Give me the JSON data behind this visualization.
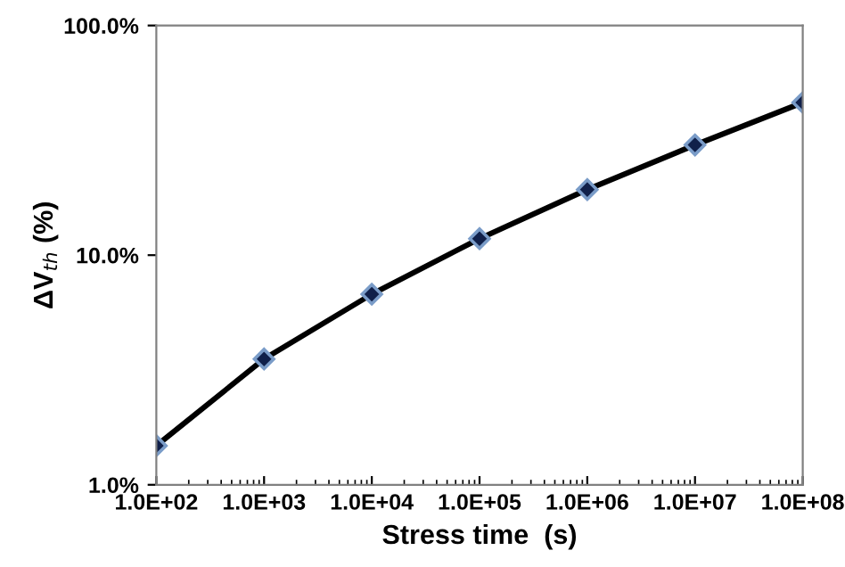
{
  "chart_data": {
    "type": "line",
    "xlabel": "Stress time  (s)",
    "ylabel": "ΔV$_{th}$ (%)",
    "log": "xy",
    "marker": "diamond",
    "line_style": "solid",
    "grid": false,
    "legend": false,
    "x": [
      100,
      1000,
      10000,
      100000,
      1000000,
      10000000,
      100000000
    ],
    "series": [
      {
        "color": "#000000",
        "values": [
          1.48,
          3.53,
          6.76,
          11.8,
          19.3,
          30.2,
          46.2
        ]
      }
    ],
    "xlim": [
      100,
      100000000
    ],
    "ylim": [
      1,
      100
    ],
    "xticks": [
      {
        "value": 100,
        "label": "1.0E+02"
      },
      {
        "value": 1000,
        "label": "1.0E+03"
      },
      {
        "value": 10000,
        "label": "1.0E+04"
      },
      {
        "value": 100000,
        "label": "1.0E+05"
      },
      {
        "value": 1000000,
        "label": "1.0E+06"
      },
      {
        "value": 10000000,
        "label": "1.0E+07"
      },
      {
        "value": 100000000,
        "label": "1.0E+08"
      }
    ],
    "yticks": [
      {
        "value": 1,
        "label": "1.0%"
      },
      {
        "value": 10,
        "label": "10.0%"
      },
      {
        "value": 100,
        "label": "100.0%"
      }
    ]
  }
}
